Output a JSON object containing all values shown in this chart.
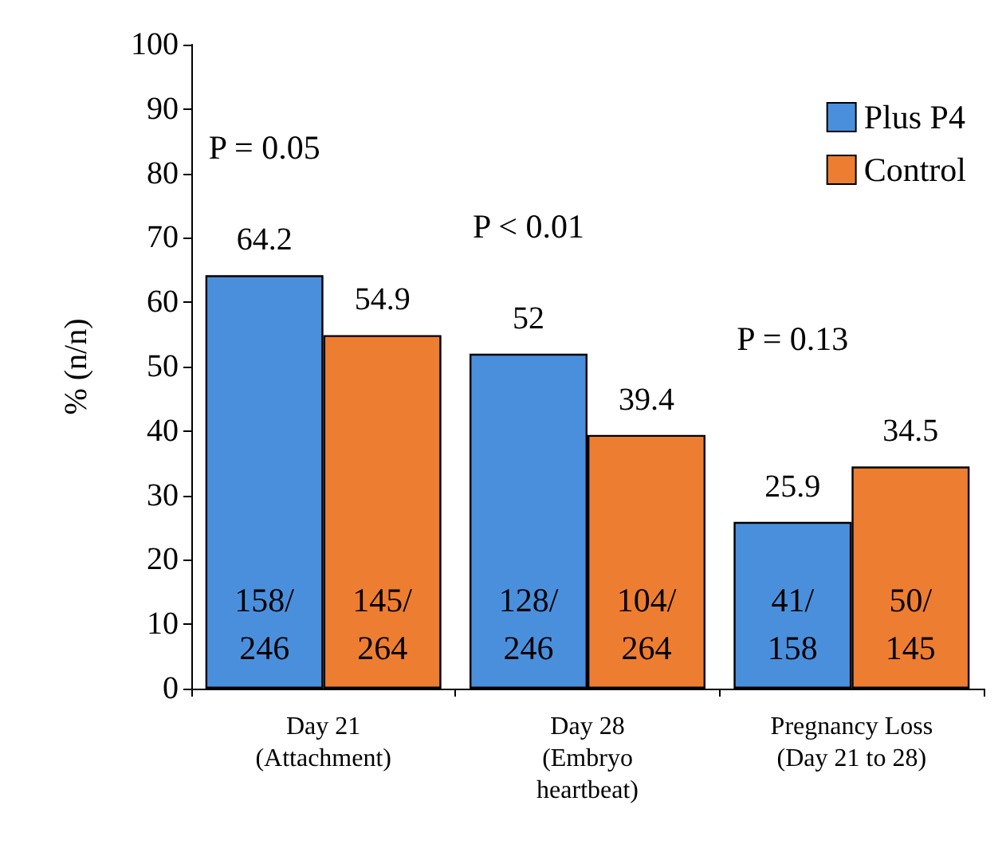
{
  "chart_data": {
    "type": "bar",
    "ylabel": "% (n/n)",
    "categories": [
      "Day 21\n(Attachment)",
      "Day 28\n(Embryo\nheartbeat)",
      "Pregnancy Loss\n(Day 21 to 28)"
    ],
    "series": [
      {
        "name": "Plus P4",
        "color": "#4a8fdc",
        "values": [
          64.2,
          52,
          25.9
        ]
      },
      {
        "name": "Control",
        "color": "#ed7d31",
        "values": [
          54.9,
          39.4,
          34.5
        ]
      }
    ],
    "ylim": [
      0,
      100
    ],
    "yticks": [
      0,
      10,
      20,
      30,
      40,
      50,
      60,
      70,
      80,
      90,
      100
    ],
    "grid": false,
    "legend": "top right",
    "data_labels": true,
    "annotations": [
      "P = 0.05",
      "P < 0.01",
      "P = 0.13",
      {
        "text": "158/\n246",
        "x": "Day 21\n(Attachment)",
        "y": 10
      },
      {
        "text": "145/\n264",
        "x": "Day 21\n(Attachment)",
        "y": 10
      },
      {
        "text": "128/\n246",
        "x": "Day 28\n(Embryo\nheartbeat)",
        "y": 10
      },
      {
        "text": "104/\n264",
        "x": "Day 28\n(Embryo\nheartbeat)",
        "y": 10
      },
      {
        "text": "41/\n158",
        "x": "Pregnancy Loss\n(Day 21 to 28)",
        "y": 10
      },
      {
        "text": "50/\n145",
        "x": "Pregnancy Loss\n(Day 21 to 28)",
        "y": 10
      }
    ]
  }
}
